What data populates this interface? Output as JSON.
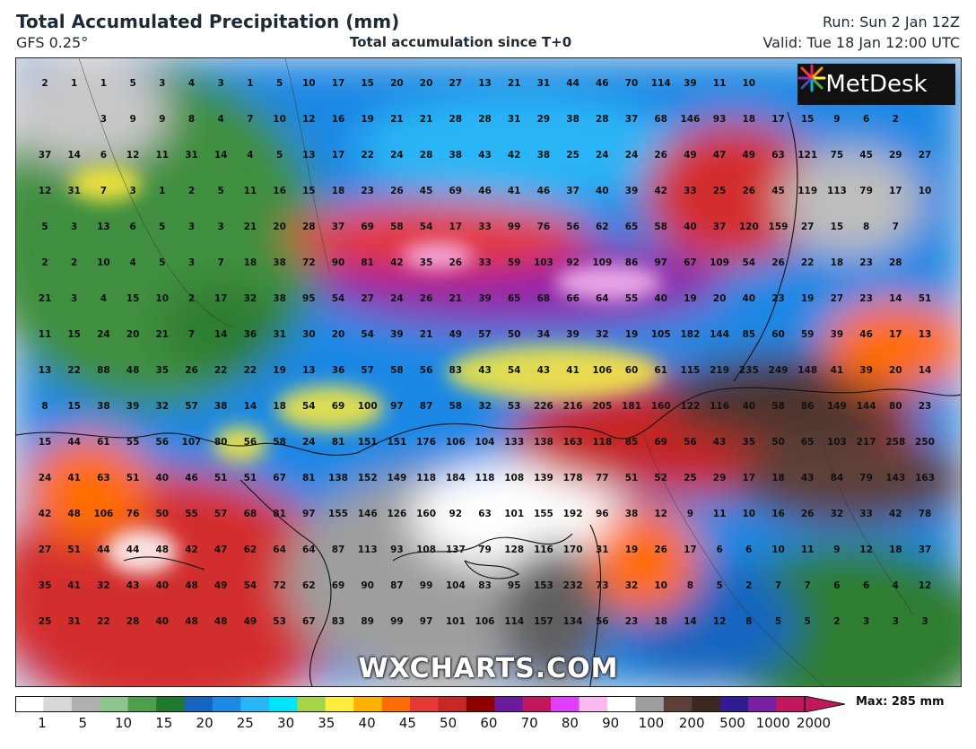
{
  "header": {
    "title": "Total Accumulated Precipitation (mm)",
    "model": "GFS 0.25°",
    "subtitle": "Total accumulation since T+0",
    "run": "Run: Sun 2 Jan 12Z",
    "valid": "Valid: Tue 18 Jan 12:00 UTC"
  },
  "logo": {
    "text": "MetDesk",
    "icon": "metdesk-starburst-icon"
  },
  "watermark": "WXCHARTS.COM",
  "colorbar": {
    "tick_labels": [
      "1",
      "5",
      "10",
      "15",
      "20",
      "25",
      "30",
      "35",
      "40",
      "45",
      "50",
      "60",
      "70",
      "80",
      "90",
      "100",
      "200",
      "500",
      "1000",
      "2000"
    ],
    "max_label": "Max: 285 mm",
    "colors": [
      "#ffffff",
      "#d8d8d8",
      "#b0b0b0",
      "#8fc48f",
      "#4e9e4e",
      "#1f7a2e",
      "#1565c0",
      "#1e88e5",
      "#29b6f6",
      "#00e5ff",
      "#a5d64a",
      "#ffeb3b",
      "#ffb300",
      "#ff6d00",
      "#e53935",
      "#c62828",
      "#8e0000",
      "#6a1b9a",
      "#c2185b",
      "#e040fb",
      "#f8bbf0",
      "#ffffff",
      "#9e9e9e",
      "#5d4037",
      "#3e2723",
      "#311b92",
      "#7b1fa2",
      "#c2185b"
    ]
  },
  "grid_values": [
    [
      "2",
      "1",
      "1",
      "5",
      "3",
      "4",
      "3",
      "1",
      "5",
      "10",
      "17",
      "15",
      "20",
      "20",
      "27",
      "13",
      "21",
      "31",
      "44",
      "46",
      "70",
      "114",
      "39",
      "11",
      "10",
      "",
      "",
      "",
      ""
    ],
    [
      "",
      "",
      "3",
      "9",
      "9",
      "8",
      "4",
      "7",
      "10",
      "12",
      "16",
      "19",
      "21",
      "21",
      "28",
      "28",
      "31",
      "29",
      "38",
      "28",
      "37",
      "68",
      "146",
      "93",
      "18",
      "17",
      "15",
      "9",
      "6",
      "2"
    ],
    [
      "37",
      "14",
      "6",
      "12",
      "11",
      "31",
      "14",
      "4",
      "5",
      "13",
      "17",
      "22",
      "24",
      "28",
      "38",
      "43",
      "42",
      "38",
      "25",
      "24",
      "24",
      "26",
      "49",
      "47",
      "49",
      "63",
      "121",
      "75",
      "45",
      "29",
      "27"
    ],
    [
      "12",
      "31",
      "7",
      "3",
      "1",
      "2",
      "5",
      "11",
      "16",
      "15",
      "18",
      "23",
      "26",
      "45",
      "69",
      "46",
      "41",
      "46",
      "37",
      "40",
      "39",
      "42",
      "33",
      "25",
      "26",
      "45",
      "119",
      "113",
      "79",
      "17",
      "10"
    ],
    [
      "5",
      "3",
      "13",
      "6",
      "5",
      "3",
      "3",
      "21",
      "20",
      "28",
      "37",
      "69",
      "58",
      "54",
      "17",
      "33",
      "99",
      "76",
      "56",
      "62",
      "65",
      "58",
      "40",
      "37",
      "120",
      "159",
      "27",
      "15",
      "8",
      "7"
    ],
    [
      "2",
      "2",
      "10",
      "4",
      "5",
      "3",
      "7",
      "18",
      "38",
      "72",
      "90",
      "81",
      "42",
      "35",
      "26",
      "33",
      "59",
      "103",
      "92",
      "109",
      "86",
      "97",
      "67",
      "109",
      "54",
      "26",
      "22",
      "18",
      "23",
      "28"
    ],
    [
      "21",
      "3",
      "4",
      "15",
      "10",
      "2",
      "17",
      "32",
      "38",
      "95",
      "54",
      "27",
      "24",
      "26",
      "21",
      "39",
      "65",
      "68",
      "66",
      "64",
      "55",
      "40",
      "19",
      "20",
      "40",
      "23",
      "19",
      "27",
      "23",
      "14",
      "51"
    ],
    [
      "11",
      "15",
      "24",
      "20",
      "21",
      "7",
      "14",
      "36",
      "31",
      "30",
      "20",
      "54",
      "39",
      "21",
      "49",
      "57",
      "50",
      "34",
      "39",
      "32",
      "19",
      "105",
      "182",
      "144",
      "85",
      "60",
      "59",
      "39",
      "46",
      "17",
      "13"
    ],
    [
      "13",
      "22",
      "88",
      "48",
      "35",
      "26",
      "22",
      "22",
      "19",
      "13",
      "36",
      "57",
      "58",
      "56",
      "83",
      "43",
      "54",
      "43",
      "41",
      "106",
      "60",
      "61",
      "115",
      "219",
      "235",
      "249",
      "148",
      "41",
      "39",
      "20",
      "14"
    ],
    [
      "8",
      "15",
      "38",
      "39",
      "32",
      "57",
      "38",
      "14",
      "18",
      "54",
      "69",
      "100",
      "97",
      "87",
      "58",
      "32",
      "53",
      "226",
      "216",
      "205",
      "181",
      "160",
      "122",
      "116",
      "40",
      "58",
      "86",
      "149",
      "144",
      "80",
      "23"
    ],
    [
      "15",
      "44",
      "61",
      "55",
      "56",
      "107",
      "80",
      "56",
      "58",
      "24",
      "81",
      "151",
      "151",
      "176",
      "106",
      "104",
      "133",
      "138",
      "163",
      "118",
      "85",
      "69",
      "56",
      "43",
      "35",
      "50",
      "65",
      "103",
      "217",
      "258",
      "250"
    ],
    [
      "24",
      "41",
      "63",
      "51",
      "40",
      "46",
      "51",
      "51",
      "67",
      "81",
      "138",
      "152",
      "149",
      "118",
      "184",
      "118",
      "108",
      "139",
      "178",
      "77",
      "51",
      "52",
      "25",
      "29",
      "17",
      "18",
      "43",
      "84",
      "79",
      "143",
      "163"
    ],
    [
      "42",
      "48",
      "106",
      "76",
      "50",
      "55",
      "57",
      "68",
      "81",
      "97",
      "155",
      "146",
      "126",
      "160",
      "92",
      "63",
      "101",
      "155",
      "192",
      "96",
      "38",
      "12",
      "9",
      "11",
      "10",
      "16",
      "26",
      "32",
      "33",
      "42",
      "78"
    ],
    [
      "27",
      "51",
      "44",
      "44",
      "48",
      "42",
      "47",
      "62",
      "64",
      "64",
      "87",
      "113",
      "93",
      "108",
      "137",
      "79",
      "128",
      "116",
      "170",
      "31",
      "19",
      "26",
      "17",
      "6",
      "6",
      "10",
      "11",
      "9",
      "12",
      "18",
      "37"
    ],
    [
      "35",
      "41",
      "32",
      "43",
      "40",
      "48",
      "49",
      "54",
      "72",
      "62",
      "69",
      "90",
      "87",
      "99",
      "104",
      "83",
      "95",
      "153",
      "232",
      "73",
      "32",
      "10",
      "8",
      "5",
      "2",
      "7",
      "7",
      "6",
      "6",
      "4",
      "12"
    ],
    [
      "25",
      "31",
      "22",
      "28",
      "40",
      "48",
      "48",
      "49",
      "53",
      "67",
      "83",
      "89",
      "99",
      "97",
      "101",
      "106",
      "114",
      "157",
      "134",
      "56",
      "23",
      "18",
      "14",
      "12",
      "8",
      "5",
      "5",
      "2",
      "3",
      "3",
      "3"
    ]
  ]
}
